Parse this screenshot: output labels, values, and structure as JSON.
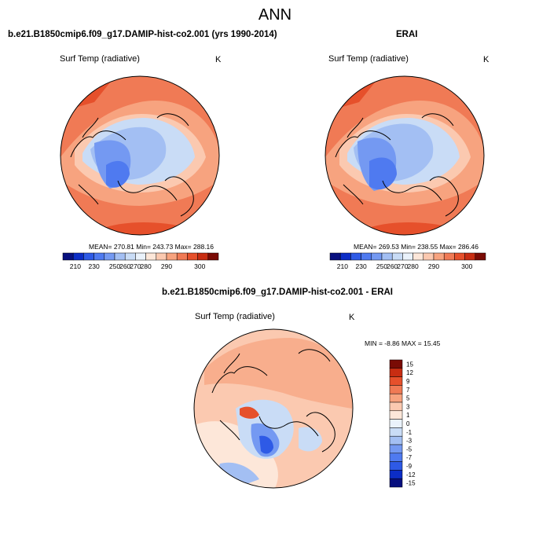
{
  "page": {
    "title": "ANN"
  },
  "colors": {
    "abs_scale": [
      "#08107f",
      "#0c2dc6",
      "#2e5ae6",
      "#4f7af0",
      "#7499f2",
      "#a3bff3",
      "#c9dcf6",
      "#eaf2fb",
      "#fde7d9",
      "#fbc9b0",
      "#f7a37f",
      "#f07a55",
      "#e6502b",
      "#c82d12",
      "#7a0b05"
    ],
    "diff_scale": [
      "#08107f",
      "#0c2dc6",
      "#2e5ae6",
      "#4f7af0",
      "#7499f2",
      "#a3bff3",
      "#c9dcf6",
      "#eaf2fb",
      "#fde7d9",
      "#fbc9b0",
      "#f7a37f",
      "#f07a55",
      "#e6502b",
      "#c82d12",
      "#7a0b05"
    ],
    "coast": "#000000"
  },
  "chart_data": [
    {
      "type": "heatmap",
      "projection": "north polar stereographic",
      "title": "b.e21.B1850cmip6.f09_g17.DAMIP-hist-co2.001 (yrs 1990-2014)",
      "variable": "Surf Temp (radiative)",
      "units": "K",
      "stats": "MEAN= 270.81  Min= 243.73  Max= 288.16",
      "mean": 270.81,
      "min": 243.73,
      "max": 288.16,
      "colorbar_ticks": [
        "210",
        "230",
        "250",
        "260",
        "270",
        "280",
        "290",
        "300"
      ]
    },
    {
      "type": "heatmap",
      "projection": "north polar stereographic",
      "title": "ERAI",
      "variable": "Surf Temp (radiative)",
      "units": "K",
      "stats": "MEAN= 269.53  Min= 238.55  Max= 286.46",
      "mean": 269.53,
      "min": 238.55,
      "max": 286.46,
      "colorbar_ticks": [
        "210",
        "230",
        "250",
        "260",
        "270",
        "280",
        "290",
        "300"
      ]
    },
    {
      "type": "heatmap",
      "projection": "north polar stereographic",
      "title": "b.e21.B1850cmip6.f09_g17.DAMIP-hist-co2.001 - ERAI",
      "variable": "Surf Temp (radiative)",
      "units": "K",
      "stats": "MIN =  -8.86 MAX =  15.45",
      "min": -8.86,
      "max": 15.45,
      "colorbar_ticks": [
        "15",
        "12",
        "9",
        "7",
        "5",
        "3",
        "1",
        "0",
        "-1",
        "-3",
        "-5",
        "-7",
        "-9",
        "-12",
        "-15"
      ]
    }
  ]
}
